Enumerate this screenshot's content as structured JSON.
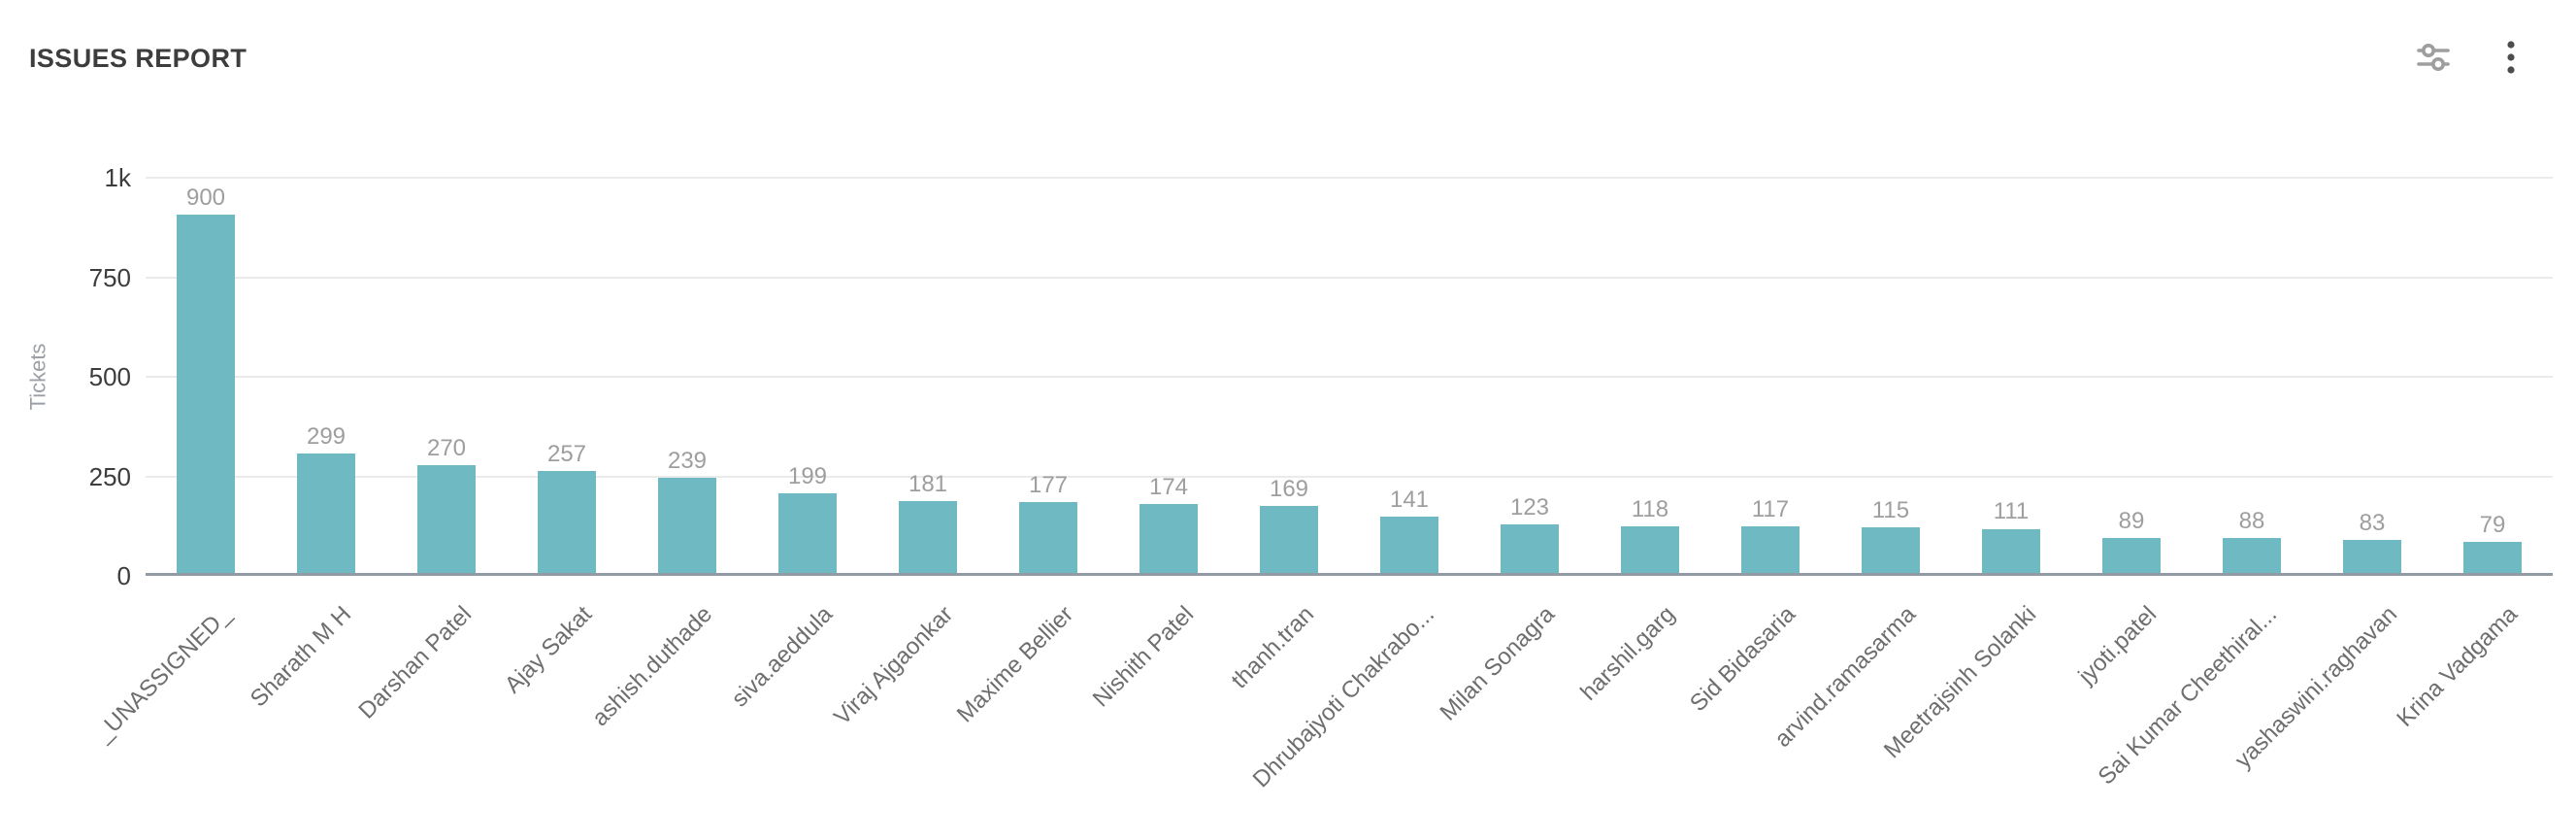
{
  "header": {
    "title": "ISSUES REPORT",
    "actions": [
      {
        "name": "filter-settings-button",
        "icon": "tune-sliders-icon"
      },
      {
        "name": "more-options-button",
        "icon": "kebab-menu-icon"
      }
    ]
  },
  "chart_data": {
    "type": "bar",
    "title": "ISSUES REPORT",
    "xlabel": "",
    "ylabel": "Tickets",
    "ylim": [
      0,
      1000
    ],
    "grid": true,
    "legend": "none",
    "bar_color": "#6fb9c2",
    "categories": [
      "_UNASSIGNED_",
      "Sharath M H",
      "Darshan Patel",
      "Ajay Sakat",
      "ashish.duthade",
      "siva.aeddula",
      "Viraj Ajgaonkar",
      "Maxime Bellier",
      "Nishith Patel",
      "thanh.tran",
      "Dhrubajyoti Chakrabo...",
      "Milan Sonagra",
      "harshil.garg",
      "Sid Bidasaria",
      "arvind.ramasarma",
      "Meetrajsinh Solanki",
      "jyoti.patel",
      "Sai Kumar Cheethiral...",
      "yashaswini.raghavan",
      "Krina Vadgama"
    ],
    "values": [
      900,
      299,
      270,
      257,
      239,
      199,
      181,
      177,
      174,
      169,
      141,
      123,
      118,
      117,
      115,
      111,
      89,
      88,
      83,
      79
    ],
    "yticks": [
      {
        "value": 0,
        "label": "0"
      },
      {
        "value": 250,
        "label": "250"
      },
      {
        "value": 500,
        "label": "500"
      },
      {
        "value": 750,
        "label": "750"
      },
      {
        "value": 1000,
        "label": "1k"
      }
    ]
  },
  "colors": {
    "bar": "#6fb9c2",
    "gridline": "#ebebeb",
    "axis_line": "#929aa5",
    "tick_label": "#3c3c3c",
    "value_label": "#9e9e9e",
    "category_label": "#6e6e6e",
    "y_axis_title": "#9aa0a6",
    "title_text": "#3d3d3d",
    "icon_gray": "#9e9e9e",
    "icon_dark": "#4d4d4d",
    "background": "#ffffff"
  }
}
